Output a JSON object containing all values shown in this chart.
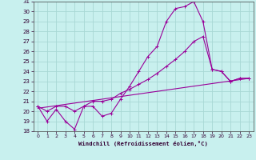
{
  "xlabel": "Windchill (Refroidissement éolien,°C)",
  "bg_color": "#c8f0ee",
  "grid_color": "#a8d8d4",
  "line_color": "#990099",
  "xlim": [
    -0.5,
    23.5
  ],
  "ylim": [
    18,
    31
  ],
  "xticks": [
    0,
    1,
    2,
    3,
    4,
    5,
    6,
    7,
    8,
    9,
    10,
    11,
    12,
    13,
    14,
    15,
    16,
    17,
    18,
    19,
    20,
    21,
    22,
    23
  ],
  "yticks": [
    18,
    19,
    20,
    21,
    22,
    23,
    24,
    25,
    26,
    27,
    28,
    29,
    30,
    31
  ],
  "line1_x": [
    0,
    1,
    2,
    3,
    4,
    5,
    6,
    7,
    8,
    9,
    10,
    11,
    12,
    13,
    14,
    15,
    16,
    17,
    18,
    19,
    20,
    21,
    22,
    23
  ],
  "line1_y": [
    20.5,
    19.0,
    20.2,
    19.0,
    18.2,
    20.5,
    20.5,
    19.5,
    19.8,
    21.2,
    22.5,
    24.0,
    25.5,
    26.5,
    29.0,
    30.3,
    30.5,
    31.0,
    29.0,
    24.2,
    24.0,
    23.0,
    23.3,
    23.3
  ],
  "line2_x": [
    0,
    1,
    2,
    3,
    4,
    5,
    6,
    7,
    8,
    9,
    10,
    11,
    12,
    13,
    14,
    15,
    16,
    17,
    18,
    19,
    20,
    21,
    22,
    23
  ],
  "line2_y": [
    20.5,
    20.0,
    20.5,
    20.5,
    20.0,
    20.5,
    21.0,
    21.0,
    21.2,
    21.8,
    22.2,
    22.7,
    23.2,
    23.8,
    24.5,
    25.2,
    26.0,
    27.0,
    27.5,
    24.2,
    24.0,
    23.0,
    23.3,
    23.3
  ],
  "line3_x": [
    0,
    23
  ],
  "line3_y": [
    20.3,
    23.3
  ]
}
